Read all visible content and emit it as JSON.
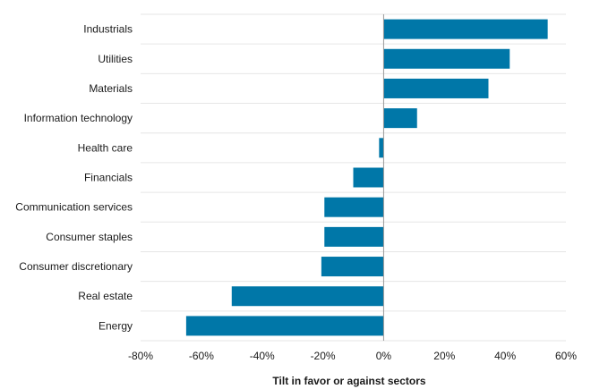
{
  "chart_data": {
    "type": "bar",
    "orientation": "horizontal",
    "categories": [
      "Industrials",
      "Utilities",
      "Materials",
      "Information technology",
      "Health care",
      "Financials",
      "Communication services",
      "Consumer staples",
      "Consumer discretionary",
      "Real estate",
      "Energy"
    ],
    "values": [
      54,
      41.5,
      34.5,
      11,
      -1.5,
      -10,
      -19.5,
      -19.5,
      -20.5,
      -50,
      -65
    ],
    "xlabel": "Tilt in favor or against sectors",
    "ylabel": "",
    "xlim": [
      -80,
      60
    ],
    "xticks": [
      -80,
      -60,
      -40,
      -20,
      0,
      20,
      40,
      60
    ],
    "xtick_labels": [
      "-80%",
      "-60%",
      "-40%",
      "-20%",
      "0%",
      "20%",
      "40%",
      "60%"
    ],
    "grid": "horizontal separators between categories",
    "legend": "none",
    "bar_color": "#0077A8",
    "zero_line_color": "#999999",
    "grid_color": "#E6E6E6"
  }
}
